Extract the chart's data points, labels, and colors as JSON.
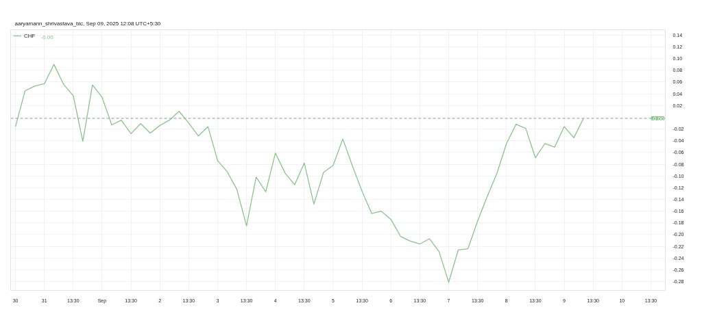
{
  "chart_data": {
    "type": "line",
    "title": "aaryamann_shrivastava_blc, Sep 09, 2025 12:08 UTC+5:30",
    "categories": [
      "30",
      null,
      null,
      "31",
      null,
      null,
      "13:30",
      null,
      null,
      "Sep",
      null,
      null,
      "13:30",
      null,
      null,
      "2",
      null,
      null,
      "13:30",
      null,
      null,
      "3",
      null,
      null,
      "13:30",
      null,
      null,
      "4",
      null,
      null,
      "13:30",
      null,
      null,
      "5",
      null,
      null,
      "13:30",
      null,
      null,
      "6",
      null,
      null,
      "13:30",
      null,
      null,
      "7",
      null,
      null,
      "13:30",
      null,
      null,
      "8",
      null,
      null,
      "13:30",
      null,
      null,
      "9",
      null,
      null,
      "13:30",
      null,
      null,
      "10",
      null,
      null,
      "13:30",
      null
    ],
    "series": [
      {
        "name": "CHF",
        "color": "#89c589",
        "values": [
          -0.016,
          0.045,
          0.053,
          0.057,
          0.09,
          0.056,
          0.037,
          -0.041,
          0.055,
          0.034,
          -0.013,
          -0.005,
          -0.028,
          -0.011,
          -0.027,
          -0.014,
          -0.005,
          0.01,
          -0.01,
          -0.032,
          -0.016,
          -0.074,
          -0.093,
          -0.123,
          -0.185,
          -0.102,
          -0.127,
          -0.061,
          -0.095,
          -0.115,
          -0.078,
          -0.148,
          -0.094,
          -0.082,
          -0.037,
          -0.083,
          -0.126,
          -0.164,
          -0.16,
          -0.174,
          -0.203,
          -0.211,
          -0.216,
          -0.207,
          -0.229,
          -0.281,
          -0.226,
          -0.224,
          -0.177,
          -0.135,
          -0.096,
          -0.045,
          -0.012,
          -0.019,
          -0.069,
          -0.045,
          -0.051,
          -0.016,
          -0.035,
          -0.002,
          null,
          null,
          null,
          null,
          null,
          null,
          null,
          null
        ]
      }
    ],
    "ylim": [
      -0.295,
      0.149
    ],
    "yticks": [
      {
        "value": 0.14,
        "label": "0.14"
      },
      {
        "value": 0.12,
        "label": "0.12"
      },
      {
        "value": 0.1,
        "label": "0.10"
      },
      {
        "value": 0.08,
        "label": "0.08"
      },
      {
        "value": 0.06,
        "label": "0.06"
      },
      {
        "value": 0.04,
        "label": "0.04"
      },
      {
        "value": 0.02,
        "label": "0.02"
      },
      {
        "value": 0,
        "label": null
      },
      {
        "value": -0.02,
        "label": "-0.02"
      },
      {
        "value": -0.04,
        "label": "-0.04"
      },
      {
        "value": -0.06,
        "label": "-0.06"
      },
      {
        "value": -0.08,
        "label": "-0.08"
      },
      {
        "value": -0.1,
        "label": "-0.10"
      },
      {
        "value": -0.12,
        "label": "-0.12"
      },
      {
        "value": -0.14,
        "label": "-0.14"
      },
      {
        "value": -0.16,
        "label": "-0.16"
      },
      {
        "value": -0.18,
        "label": "-0.18"
      },
      {
        "value": -0.2,
        "label": "-0.20"
      },
      {
        "value": -0.22,
        "label": "-0.22"
      },
      {
        "value": -0.24,
        "label": "-0.24"
      },
      {
        "value": -0.26,
        "label": "-0.26"
      },
      {
        "value": -0.28,
        "label": "-0.28"
      }
    ],
    "ref_lines": [
      {
        "axis": "y",
        "value": -0.002,
        "label": "-0.00",
        "color": "#9598a1",
        "line_style": "dashed"
      }
    ],
    "annotations": [
      "-0.00"
    ],
    "grid": true,
    "legend": "top left",
    "line_style": "solid"
  }
}
